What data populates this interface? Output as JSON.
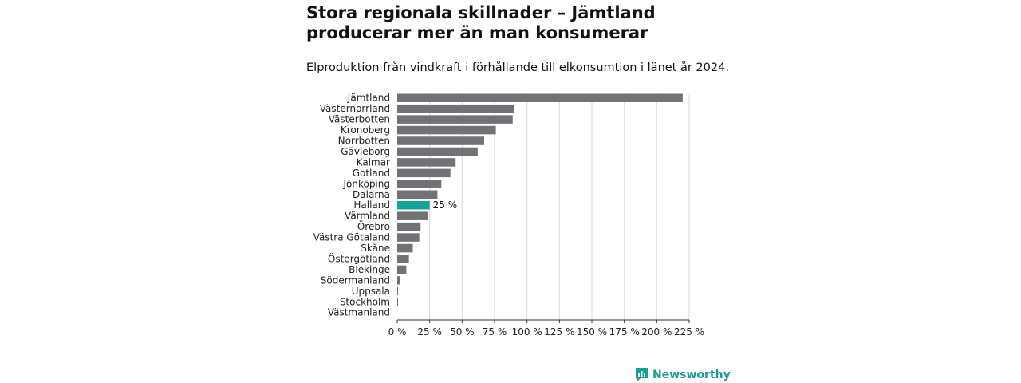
{
  "header": {
    "title": "Stora regionala skillnader – Jämtland producerar mer än man konsumerar",
    "subtitle": "Elproduktion från vindkraft i förhållande till elkonsumtion i länet år 2024."
  },
  "brand": {
    "name": "Newsworthy",
    "color": "#169e97"
  },
  "colors": {
    "bar": "#717176",
    "highlight": "#15a39a",
    "grid": "#d9d9d9",
    "axis": "#333333"
  },
  "chart_data": {
    "type": "bar",
    "orientation": "horizontal",
    "categories": [
      "Jämtland",
      "Västernorrland",
      "Västerbotten",
      "Kronoberg",
      "Norrbotten",
      "Gävleborg",
      "Kalmar",
      "Gotland",
      "Jönköping",
      "Dalarna",
      "Halland",
      "Värmland",
      "Örebro",
      "Västra Götaland",
      "Skåne",
      "Östergötland",
      "Blekinge",
      "Södermanland",
      "Uppsala",
      "Stockholm",
      "Västmanland"
    ],
    "values": [
      220,
      90,
      89,
      76,
      67,
      62,
      45,
      41,
      34,
      31,
      25,
      24,
      18,
      17,
      12,
      9,
      7,
      2,
      0.5,
      0.5,
      0
    ],
    "highlight": {
      "category": "Halland",
      "label": "25 %"
    },
    "xlim": [
      0,
      225
    ],
    "xticks": [
      0,
      25,
      50,
      75,
      100,
      125,
      150,
      175,
      200,
      225
    ],
    "xtick_labels": [
      "0 %",
      "25 %",
      "50 %",
      "75 %",
      "100 %",
      "125 %",
      "150 %",
      "175 %",
      "200 %",
      "225 %"
    ],
    "grid": "vertical",
    "xlabel": "",
    "ylabel": ""
  }
}
